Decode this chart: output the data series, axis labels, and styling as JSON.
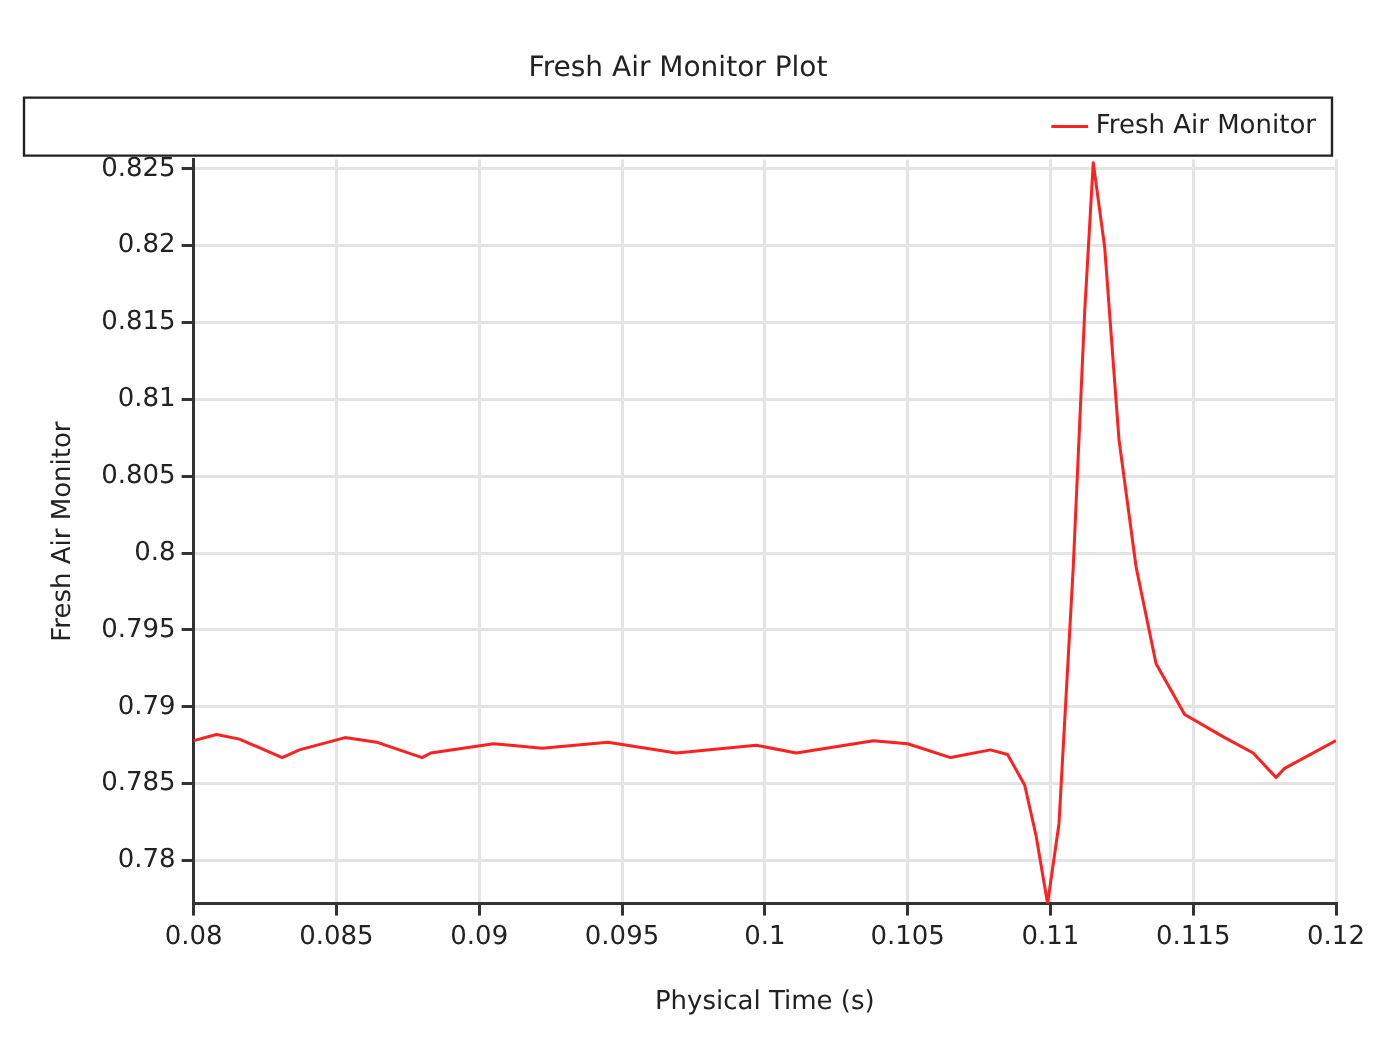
{
  "chart_data": {
    "type": "line",
    "title": "Fresh Air Monitor Plot",
    "xlabel": "Physical Time (s)",
    "ylabel": "Fresh Air Monitor",
    "xlim": [
      0.08,
      0.12
    ],
    "xticks": [
      0.08,
      0.085,
      0.09,
      0.095,
      0.1,
      0.105,
      0.11,
      0.115,
      0.12
    ],
    "ylim": [
      0.7772,
      0.8256
    ],
    "yticks": [
      0.78,
      0.785,
      0.79,
      0.795,
      0.8,
      0.805,
      0.81,
      0.815,
      0.82,
      0.825
    ],
    "grid": true,
    "legend": "top right",
    "marker": "none",
    "line_style": "solid",
    "series": [
      {
        "name": "Fresh Air Monitor",
        "color": "#ff2020",
        "x": [
          0.08,
          0.0808,
          0.0816,
          0.0831,
          0.0837,
          0.0853,
          0.0864,
          0.088,
          0.0883,
          0.0905,
          0.0922,
          0.0945,
          0.0969,
          0.0997,
          0.1011,
          0.1038,
          0.105,
          0.1065,
          0.1079,
          0.1085,
          0.1091,
          0.1095,
          0.1099,
          0.1103,
          0.1108,
          0.1112,
          0.1115,
          0.1119,
          0.1124,
          0.113,
          0.1137,
          0.1147,
          0.1161,
          0.1171,
          0.1179,
          0.1182,
          0.12
        ],
        "values": [
          0.7878,
          0.7882,
          0.7879,
          0.7867,
          0.7872,
          0.788,
          0.7877,
          0.7867,
          0.787,
          0.7876,
          0.7873,
          0.7877,
          0.787,
          0.7875,
          0.787,
          0.7878,
          0.7876,
          0.7867,
          0.7872,
          0.7869,
          0.7849,
          0.7816,
          0.7772,
          0.7824,
          0.7991,
          0.8157,
          0.8254,
          0.8199,
          0.8074,
          0.7991,
          0.7928,
          0.7895,
          0.788,
          0.787,
          0.7854,
          0.786,
          0.7878
        ]
      }
    ]
  }
}
